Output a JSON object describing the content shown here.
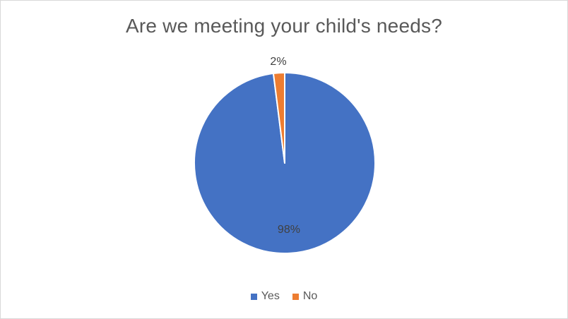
{
  "chart_data": {
    "type": "pie",
    "title": "Are we meeting your child's needs?",
    "categories": [
      "Yes",
      "No"
    ],
    "values": [
      98,
      2
    ],
    "data_labels": [
      "98%",
      "2%"
    ],
    "colors": [
      "#4472C4",
      "#ED7D31"
    ],
    "legend_position": "bottom",
    "start_angle_deg": 0,
    "direction": "clockwise"
  }
}
